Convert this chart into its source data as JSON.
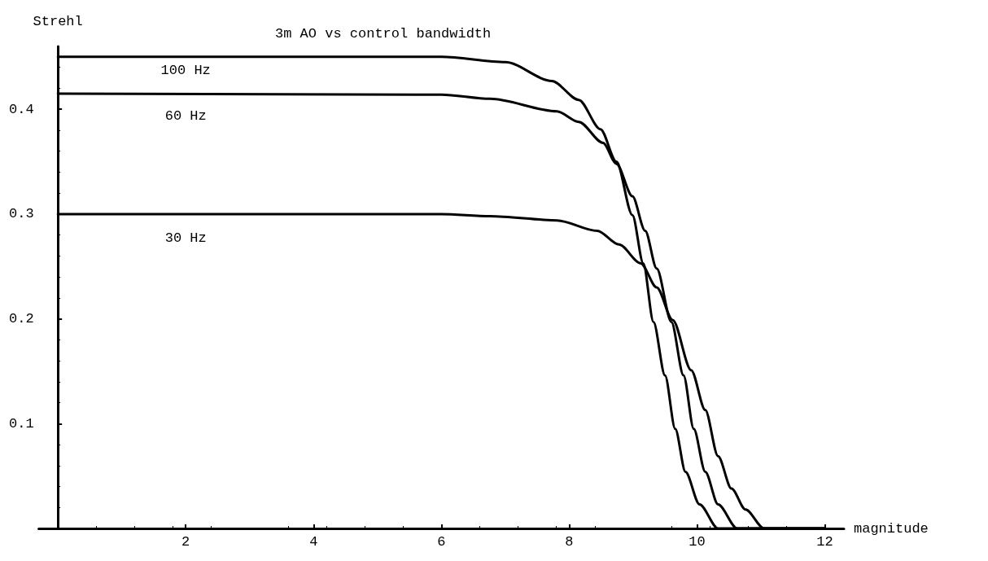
{
  "chart_data": {
    "type": "line",
    "title": "3m AO vs control bandwidth",
    "xlabel": "magnitude",
    "ylabel": "Strehl",
    "xlim": [
      -0.3,
      12.3
    ],
    "xticks": [
      2,
      4,
      6,
      8,
      10,
      12
    ],
    "ylim": [
      0,
      0.46
    ],
    "yticks": [
      0.1,
      0.2,
      0.3,
      0.4
    ],
    "grid": false,
    "legend": false,
    "marker": "none",
    "line_style": "solid",
    "series": [
      {
        "name": "100 Hz",
        "color": "#000000",
        "x": [
          0,
          6,
          7,
          7.73,
          8.15,
          8.49,
          8.74,
          8.99,
          9.16,
          9.32,
          9.5,
          9.66,
          9.82,
          10.04,
          10.33,
          12
        ],
        "values": [
          0.45,
          0.45,
          0.445,
          0.427,
          0.409,
          0.381,
          0.35,
          0.299,
          0.253,
          0.197,
          0.146,
          0.095,
          0.054,
          0.023,
          0,
          0
        ]
      },
      {
        "name": "60 Hz",
        "color": "#000000",
        "x": [
          0,
          6,
          6.76,
          7.81,
          8.15,
          8.53,
          8.74,
          8.99,
          9.19,
          9.37,
          9.6,
          9.79,
          9.95,
          10.13,
          10.33,
          10.63,
          12
        ],
        "values": [
          0.415,
          0.414,
          0.41,
          0.398,
          0.388,
          0.368,
          0.348,
          0.317,
          0.284,
          0.248,
          0.197,
          0.146,
          0.095,
          0.054,
          0.023,
          0,
          0
        ]
      },
      {
        "name": "30 Hz",
        "color": "#000000",
        "x": [
          0,
          6,
          6.76,
          7.81,
          8.44,
          8.78,
          9.12,
          9.37,
          9.62,
          9.91,
          10.13,
          10.33,
          10.54,
          10.76,
          11.05,
          12
        ],
        "values": [
          0.3,
          0.3,
          0.298,
          0.294,
          0.284,
          0.271,
          0.253,
          0.23,
          0.199,
          0.151,
          0.113,
          0.069,
          0.038,
          0.018,
          0,
          0
        ]
      }
    ]
  }
}
